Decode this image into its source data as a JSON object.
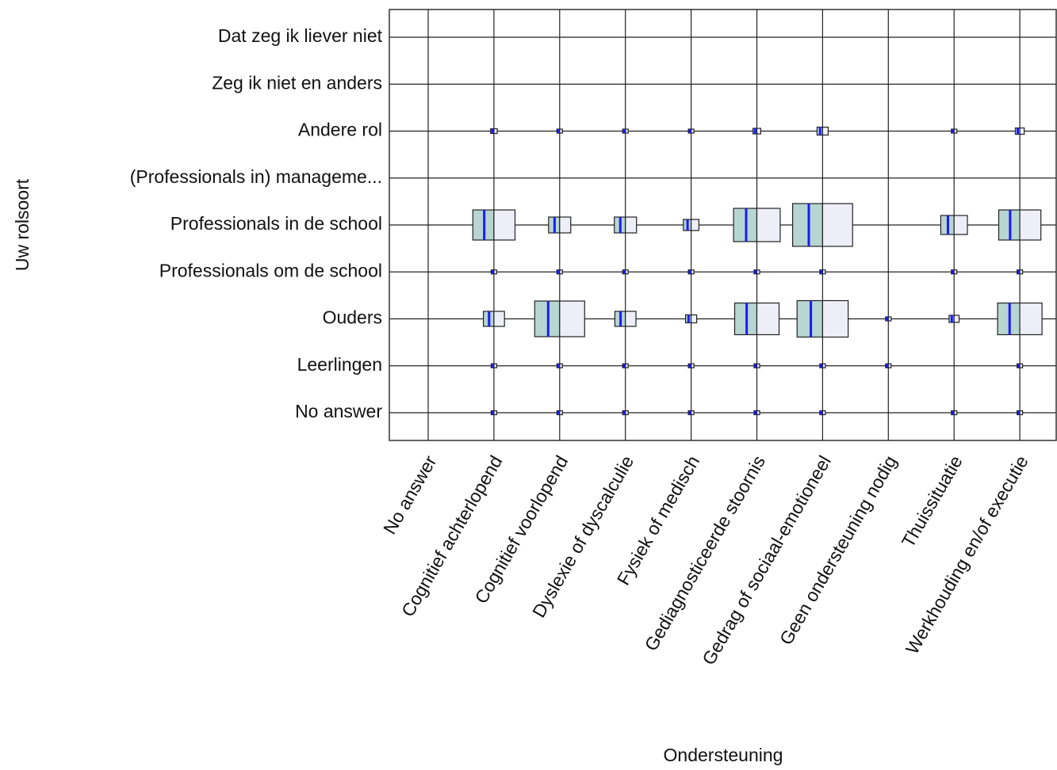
{
  "chart_data": {
    "type": "cellplot",
    "x_label": "Ondersteuning",
    "y_label": "Uw rolsoort",
    "x_categories": [
      "No answer",
      "Cognitief achterlopend",
      "Cognitief voorlopend",
      "Dyslexie of dyscalculie",
      "Fysiek of medisch",
      "Gediagnosticeerde stoornis",
      "Gedrag of sociaal-emotioneel",
      "Geen ondersteuning nodig",
      "Thuissituatie",
      "Werkhouding en/of executie"
    ],
    "y_categories": [
      "Dat zeg ik liever niet",
      "Zeg ik niet en anders",
      "Andere rol",
      "(Professionals in) manageme...",
      "Professionals in de school",
      "Professionals om de school",
      "Ouders",
      "Leerlingen",
      "No answer"
    ],
    "values": [
      [
        0,
        0,
        0,
        0,
        0,
        0,
        0,
        0,
        0,
        0
      ],
      [
        0,
        0,
        0,
        0,
        0,
        0,
        0,
        0,
        0,
        0
      ],
      [
        0,
        6,
        5,
        4,
        4,
        7,
        10,
        0,
        5,
        8
      ],
      [
        0,
        0,
        0,
        0,
        0,
        0,
        0,
        0,
        0,
        0
      ],
      [
        0,
        38,
        20,
        20,
        14,
        42,
        54,
        0,
        24,
        38
      ],
      [
        0,
        3,
        2,
        2,
        2,
        5,
        5,
        0,
        3,
        4
      ],
      [
        0,
        19,
        45,
        19,
        10,
        40,
        46,
        5,
        9,
        40
      ],
      [
        0,
        3,
        3,
        3,
        2,
        3,
        3,
        3,
        0,
        5
      ],
      [
        0,
        2,
        2,
        2,
        2,
        2,
        2,
        0,
        2,
        2
      ]
    ],
    "colors": {
      "left": "#b7d5d1",
      "right": "#eeeef8",
      "line": "#1a1aff"
    }
  }
}
